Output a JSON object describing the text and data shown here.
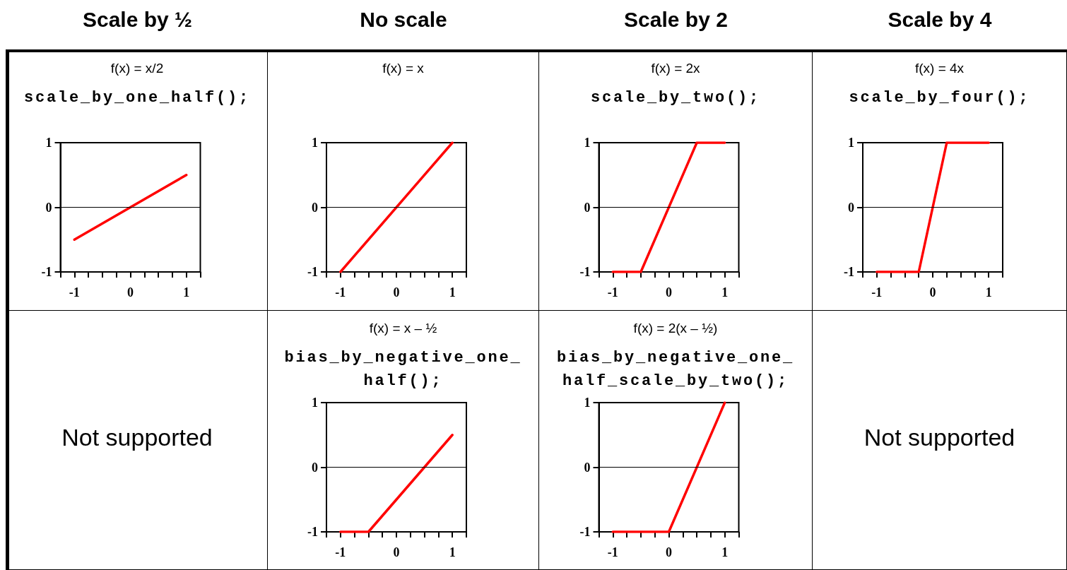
{
  "chart_data": [
    {
      "type": "other",
      "annotations": [
        "Scale by ½",
        "No scale",
        "Scale by 2",
        "Scale by 4"
      ]
    },
    {
      "type": "line",
      "title": "f(x) = x/2",
      "subtitle": "scale_by_one_half();",
      "x": [
        -1,
        1
      ],
      "values": [
        -0.5,
        0.5
      ],
      "color": "#ff0000",
      "xlim": [
        -1.25,
        1.25
      ],
      "xticks": [
        {
          "value": -1.25,
          "label": null
        },
        -1,
        {
          "value": -0.75,
          "label": null
        },
        {
          "value": -0.5,
          "label": null
        },
        {
          "value": -0.25,
          "label": null
        },
        0,
        {
          "value": 0.25,
          "label": null
        },
        {
          "value": 0.5,
          "label": null
        },
        {
          "value": 0.75,
          "label": null
        },
        1,
        {
          "value": 1.25,
          "label": null
        }
      ],
      "ylim": [
        -1,
        1
      ],
      "yticks": [
        -1,
        0,
        1
      ],
      "ref_lines": [
        {
          "axis": "y",
          "value": 0,
          "color": "#000000"
        }
      ]
    },
    {
      "type": "line",
      "title": "f(x) = x",
      "x": [
        -1,
        1
      ],
      "values": [
        -1,
        1
      ],
      "color": "#ff0000",
      "xlim": [
        -1.25,
        1.25
      ],
      "xticks": [
        {
          "value": -1.25,
          "label": null
        },
        -1,
        {
          "value": -0.75,
          "label": null
        },
        {
          "value": -0.5,
          "label": null
        },
        {
          "value": -0.25,
          "label": null
        },
        0,
        {
          "value": 0.25,
          "label": null
        },
        {
          "value": 0.5,
          "label": null
        },
        {
          "value": 0.75,
          "label": null
        },
        1,
        {
          "value": 1.25,
          "label": null
        }
      ],
      "ylim": [
        -1,
        1
      ],
      "yticks": [
        -1,
        0,
        1
      ],
      "ref_lines": [
        {
          "axis": "y",
          "value": 0,
          "color": "#000000"
        }
      ]
    },
    {
      "type": "line",
      "title": "f(x) = 2x",
      "subtitle": "scale_by_two();",
      "x": [
        -1,
        -0.5,
        0.5,
        1
      ],
      "values": [
        -1,
        -1,
        1,
        1
      ],
      "color": "#ff0000",
      "xlim": [
        -1.25,
        1.25
      ],
      "xticks": [
        {
          "value": -1.25,
          "label": null
        },
        -1,
        {
          "value": -0.75,
          "label": null
        },
        {
          "value": -0.5,
          "label": null
        },
        {
          "value": -0.25,
          "label": null
        },
        0,
        {
          "value": 0.25,
          "label": null
        },
        {
          "value": 0.5,
          "label": null
        },
        {
          "value": 0.75,
          "label": null
        },
        1,
        {
          "value": 1.25,
          "label": null
        }
      ],
      "ylim": [
        -1,
        1
      ],
      "yticks": [
        -1,
        0,
        1
      ],
      "ref_lines": [
        {
          "axis": "y",
          "value": 0,
          "color": "#000000"
        }
      ]
    },
    {
      "type": "line",
      "title": "f(x) = 4x",
      "subtitle": "scale_by_four();",
      "x": [
        -1,
        -0.25,
        0.25,
        1
      ],
      "values": [
        -1,
        -1,
        1,
        1
      ],
      "color": "#ff0000",
      "xlim": [
        -1.25,
        1.25
      ],
      "xticks": [
        {
          "value": -1.25,
          "label": null
        },
        -1,
        {
          "value": -0.75,
          "label": null
        },
        {
          "value": -0.5,
          "label": null
        },
        {
          "value": -0.25,
          "label": null
        },
        0,
        {
          "value": 0.25,
          "label": null
        },
        {
          "value": 0.5,
          "label": null
        },
        {
          "value": 0.75,
          "label": null
        },
        1,
        {
          "value": 1.25,
          "label": null
        }
      ],
      "ylim": [
        -1,
        1
      ],
      "yticks": [
        -1,
        0,
        1
      ],
      "ref_lines": [
        {
          "axis": "y",
          "value": 0,
          "color": "#000000"
        }
      ]
    },
    {
      "type": "other",
      "annotations": [
        "Not supported"
      ]
    },
    {
      "type": "line",
      "title": "f(x) = x – ½",
      "subtitle": "bias_by_negative_one_half();",
      "x": [
        -1,
        -0.5,
        1
      ],
      "values": [
        -1,
        -1,
        0.5
      ],
      "color": "#ff0000",
      "xlim": [
        -1.25,
        1.25
      ],
      "xticks": [
        {
          "value": -1.25,
          "label": null
        },
        -1,
        {
          "value": -0.75,
          "label": null
        },
        {
          "value": -0.5,
          "label": null
        },
        {
          "value": -0.25,
          "label": null
        },
        0,
        {
          "value": 0.25,
          "label": null
        },
        {
          "value": 0.5,
          "label": null
        },
        {
          "value": 0.75,
          "label": null
        },
        1,
        {
          "value": 1.25,
          "label": null
        }
      ],
      "ylim": [
        -1,
        1
      ],
      "yticks": [
        -1,
        0,
        1
      ],
      "ref_lines": [
        {
          "axis": "y",
          "value": 0,
          "color": "#000000"
        }
      ]
    },
    {
      "type": "line",
      "title": "f(x) = 2(x – ½)",
      "subtitle": "bias_by_negative_one_half_scale_by_two();",
      "x": [
        -1,
        0,
        1
      ],
      "values": [
        -1,
        -1,
        1
      ],
      "color": "#ff0000",
      "xlim": [
        -1.25,
        1.25
      ],
      "xticks": [
        {
          "value": -1.25,
          "label": null
        },
        -1,
        {
          "value": -0.75,
          "label": null
        },
        {
          "value": -0.5,
          "label": null
        },
        {
          "value": -0.25,
          "label": null
        },
        0,
        {
          "value": 0.25,
          "label": null
        },
        {
          "value": 0.5,
          "label": null
        },
        {
          "value": 0.75,
          "label": null
        },
        1,
        {
          "value": 1.25,
          "label": null
        }
      ],
      "ylim": [
        -1,
        1
      ],
      "yticks": [
        -1,
        0,
        1
      ],
      "ref_lines": [
        {
          "axis": "y",
          "value": 0,
          "color": "#000000"
        }
      ]
    },
    {
      "type": "other",
      "annotations": [
        "Not supported"
      ]
    }
  ]
}
